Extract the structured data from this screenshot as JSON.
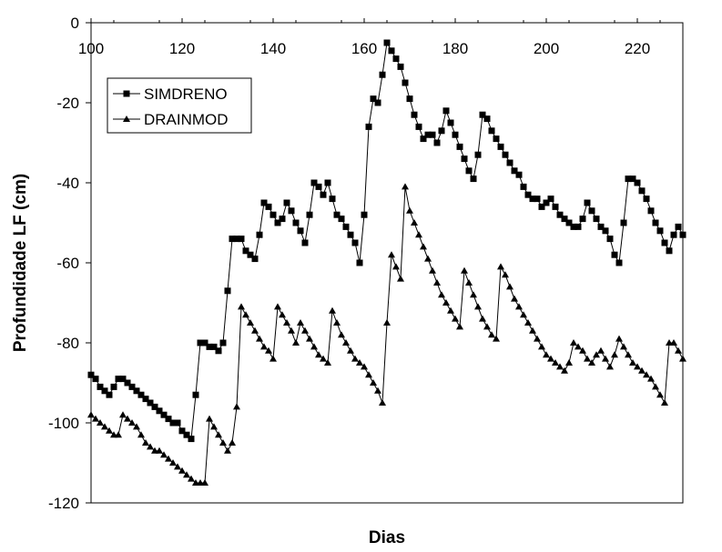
{
  "chart_data": {
    "type": "line",
    "xlabel": "Dias",
    "ylabel": "Profundidade LF (cm)",
    "xlim": [
      100,
      230
    ],
    "ylim": [
      -120,
      0
    ],
    "xticks": [
      100,
      120,
      140,
      160,
      180,
      200,
      220
    ],
    "yticks": [
      0,
      -20,
      -40,
      -60,
      -80,
      -100,
      -120
    ],
    "grid": false,
    "legend": "top-left",
    "series": [
      {
        "name": "SIMDRENO",
        "marker": "square",
        "color": "#000000",
        "x": [
          100,
          101,
          102,
          103,
          104,
          105,
          106,
          107,
          108,
          109,
          110,
          111,
          112,
          113,
          114,
          115,
          116,
          117,
          118,
          119,
          120,
          121,
          122,
          123,
          124,
          125,
          126,
          127,
          128,
          129,
          130,
          131,
          132,
          133,
          134,
          135,
          136,
          137,
          138,
          139,
          140,
          141,
          142,
          143,
          144,
          145,
          146,
          147,
          148,
          149,
          150,
          151,
          152,
          153,
          154,
          155,
          156,
          157,
          158,
          159,
          160,
          161,
          162,
          163,
          164,
          165,
          166,
          167,
          168,
          169,
          170,
          171,
          172,
          173,
          174,
          175,
          176,
          177,
          178,
          179,
          180,
          181,
          182,
          183,
          184,
          185,
          186,
          187,
          188,
          189,
          190,
          191,
          192,
          193,
          194,
          195,
          196,
          197,
          198,
          199,
          200,
          201,
          202,
          203,
          204,
          205,
          206,
          207,
          208,
          209,
          210,
          211,
          212,
          213,
          214,
          215,
          216,
          217,
          218,
          219,
          220,
          221,
          222,
          223,
          224,
          225,
          226,
          227,
          228,
          229,
          230
        ],
        "y": [
          -88,
          -89,
          -91,
          -92,
          -93,
          -91,
          -89,
          -89,
          -90,
          -91,
          -92,
          -93,
          -94,
          -95,
          -96,
          -97,
          -98,
          -99,
          -100,
          -100,
          -102,
          -103,
          -104,
          -93,
          -80,
          -80,
          -81,
          -81,
          -82,
          -80,
          -67,
          -54,
          -54,
          -54,
          -57,
          -58,
          -59,
          -53,
          -45,
          -46,
          -48,
          -50,
          -49,
          -45,
          -47,
          -50,
          -52,
          -55,
          -48,
          -40,
          -41,
          -43,
          -40,
          -44,
          -48,
          -49,
          -51,
          -53,
          -55,
          -60,
          -48,
          -26,
          -19,
          -20,
          -13,
          -5,
          -7,
          -9,
          -11,
          -15,
          -19,
          -23,
          -26,
          -29,
          -28,
          -28,
          -30,
          -27,
          -22,
          -25,
          -28,
          -31,
          -34,
          -37,
          -39,
          -33,
          -23,
          -24,
          -27,
          -29,
          -31,
          -33,
          -35,
          -37,
          -38,
          -41,
          -43,
          -44,
          -44,
          -46,
          -45,
          -44,
          -46,
          -48,
          -49,
          -50,
          -51,
          -51,
          -49,
          -45,
          -47,
          -49,
          -51,
          -52,
          -54,
          -58,
          -60,
          -50,
          -39,
          -39,
          -40,
          -42,
          -44,
          -47,
          -50,
          -52,
          -55,
          -57,
          -53,
          -51,
          -53
        ]
      },
      {
        "name": "DRAINMOD",
        "marker": "triangle",
        "color": "#000000",
        "x": [
          100,
          101,
          102,
          103,
          104,
          105,
          106,
          107,
          108,
          109,
          110,
          111,
          112,
          113,
          114,
          115,
          116,
          117,
          118,
          119,
          120,
          121,
          122,
          123,
          124,
          125,
          126,
          127,
          128,
          129,
          130,
          131,
          132,
          133,
          134,
          135,
          136,
          137,
          138,
          139,
          140,
          141,
          142,
          143,
          144,
          145,
          146,
          147,
          148,
          149,
          150,
          151,
          152,
          153,
          154,
          155,
          156,
          157,
          158,
          159,
          160,
          161,
          162,
          163,
          164,
          165,
          166,
          167,
          168,
          169,
          170,
          171,
          172,
          173,
          174,
          175,
          176,
          177,
          178,
          179,
          180,
          181,
          182,
          183,
          184,
          185,
          186,
          187,
          188,
          189,
          190,
          191,
          192,
          193,
          194,
          195,
          196,
          197,
          198,
          199,
          200,
          201,
          202,
          203,
          204,
          205,
          206,
          207,
          208,
          209,
          210,
          211,
          212,
          213,
          214,
          215,
          216,
          217,
          218,
          219,
          220,
          221,
          222,
          223,
          224,
          225,
          226,
          227,
          228,
          229,
          230
        ],
        "y": [
          -98,
          -99,
          -100,
          -101,
          -102,
          -103,
          -103,
          -98,
          -99,
          -100,
          -101,
          -103,
          -105,
          -106,
          -107,
          -107,
          -108,
          -109,
          -110,
          -111,
          -112,
          -113,
          -114,
          -115,
          -115,
          -115,
          -99,
          -101,
          -103,
          -105,
          -107,
          -105,
          -96,
          -71,
          -73,
          -75,
          -77,
          -79,
          -81,
          -82,
          -84,
          -71,
          -73,
          -75,
          -77,
          -80,
          -75,
          -77,
          -79,
          -81,
          -83,
          -84,
          -85,
          -72,
          -75,
          -78,
          -80,
          -82,
          -84,
          -85,
          -86,
          -88,
          -90,
          -92,
          -95,
          -75,
          -58,
          -61,
          -64,
          -41,
          -47,
          -50,
          -53,
          -56,
          -59,
          -62,
          -65,
          -68,
          -70,
          -72,
          -74,
          -76,
          -62,
          -65,
          -68,
          -71,
          -74,
          -76,
          -78,
          -79,
          -61,
          -63,
          -66,
          -69,
          -71,
          -73,
          -75,
          -77,
          -79,
          -81,
          -83,
          -84,
          -85,
          -86,
          -87,
          -85,
          -80,
          -81,
          -82,
          -84,
          -85,
          -83,
          -82,
          -84,
          -86,
          -83,
          -79,
          -81,
          -83,
          -85,
          -86,
          -87,
          -88,
          -89,
          -91,
          -93,
          -95,
          -80,
          -80,
          -82,
          -84
        ]
      }
    ]
  }
}
